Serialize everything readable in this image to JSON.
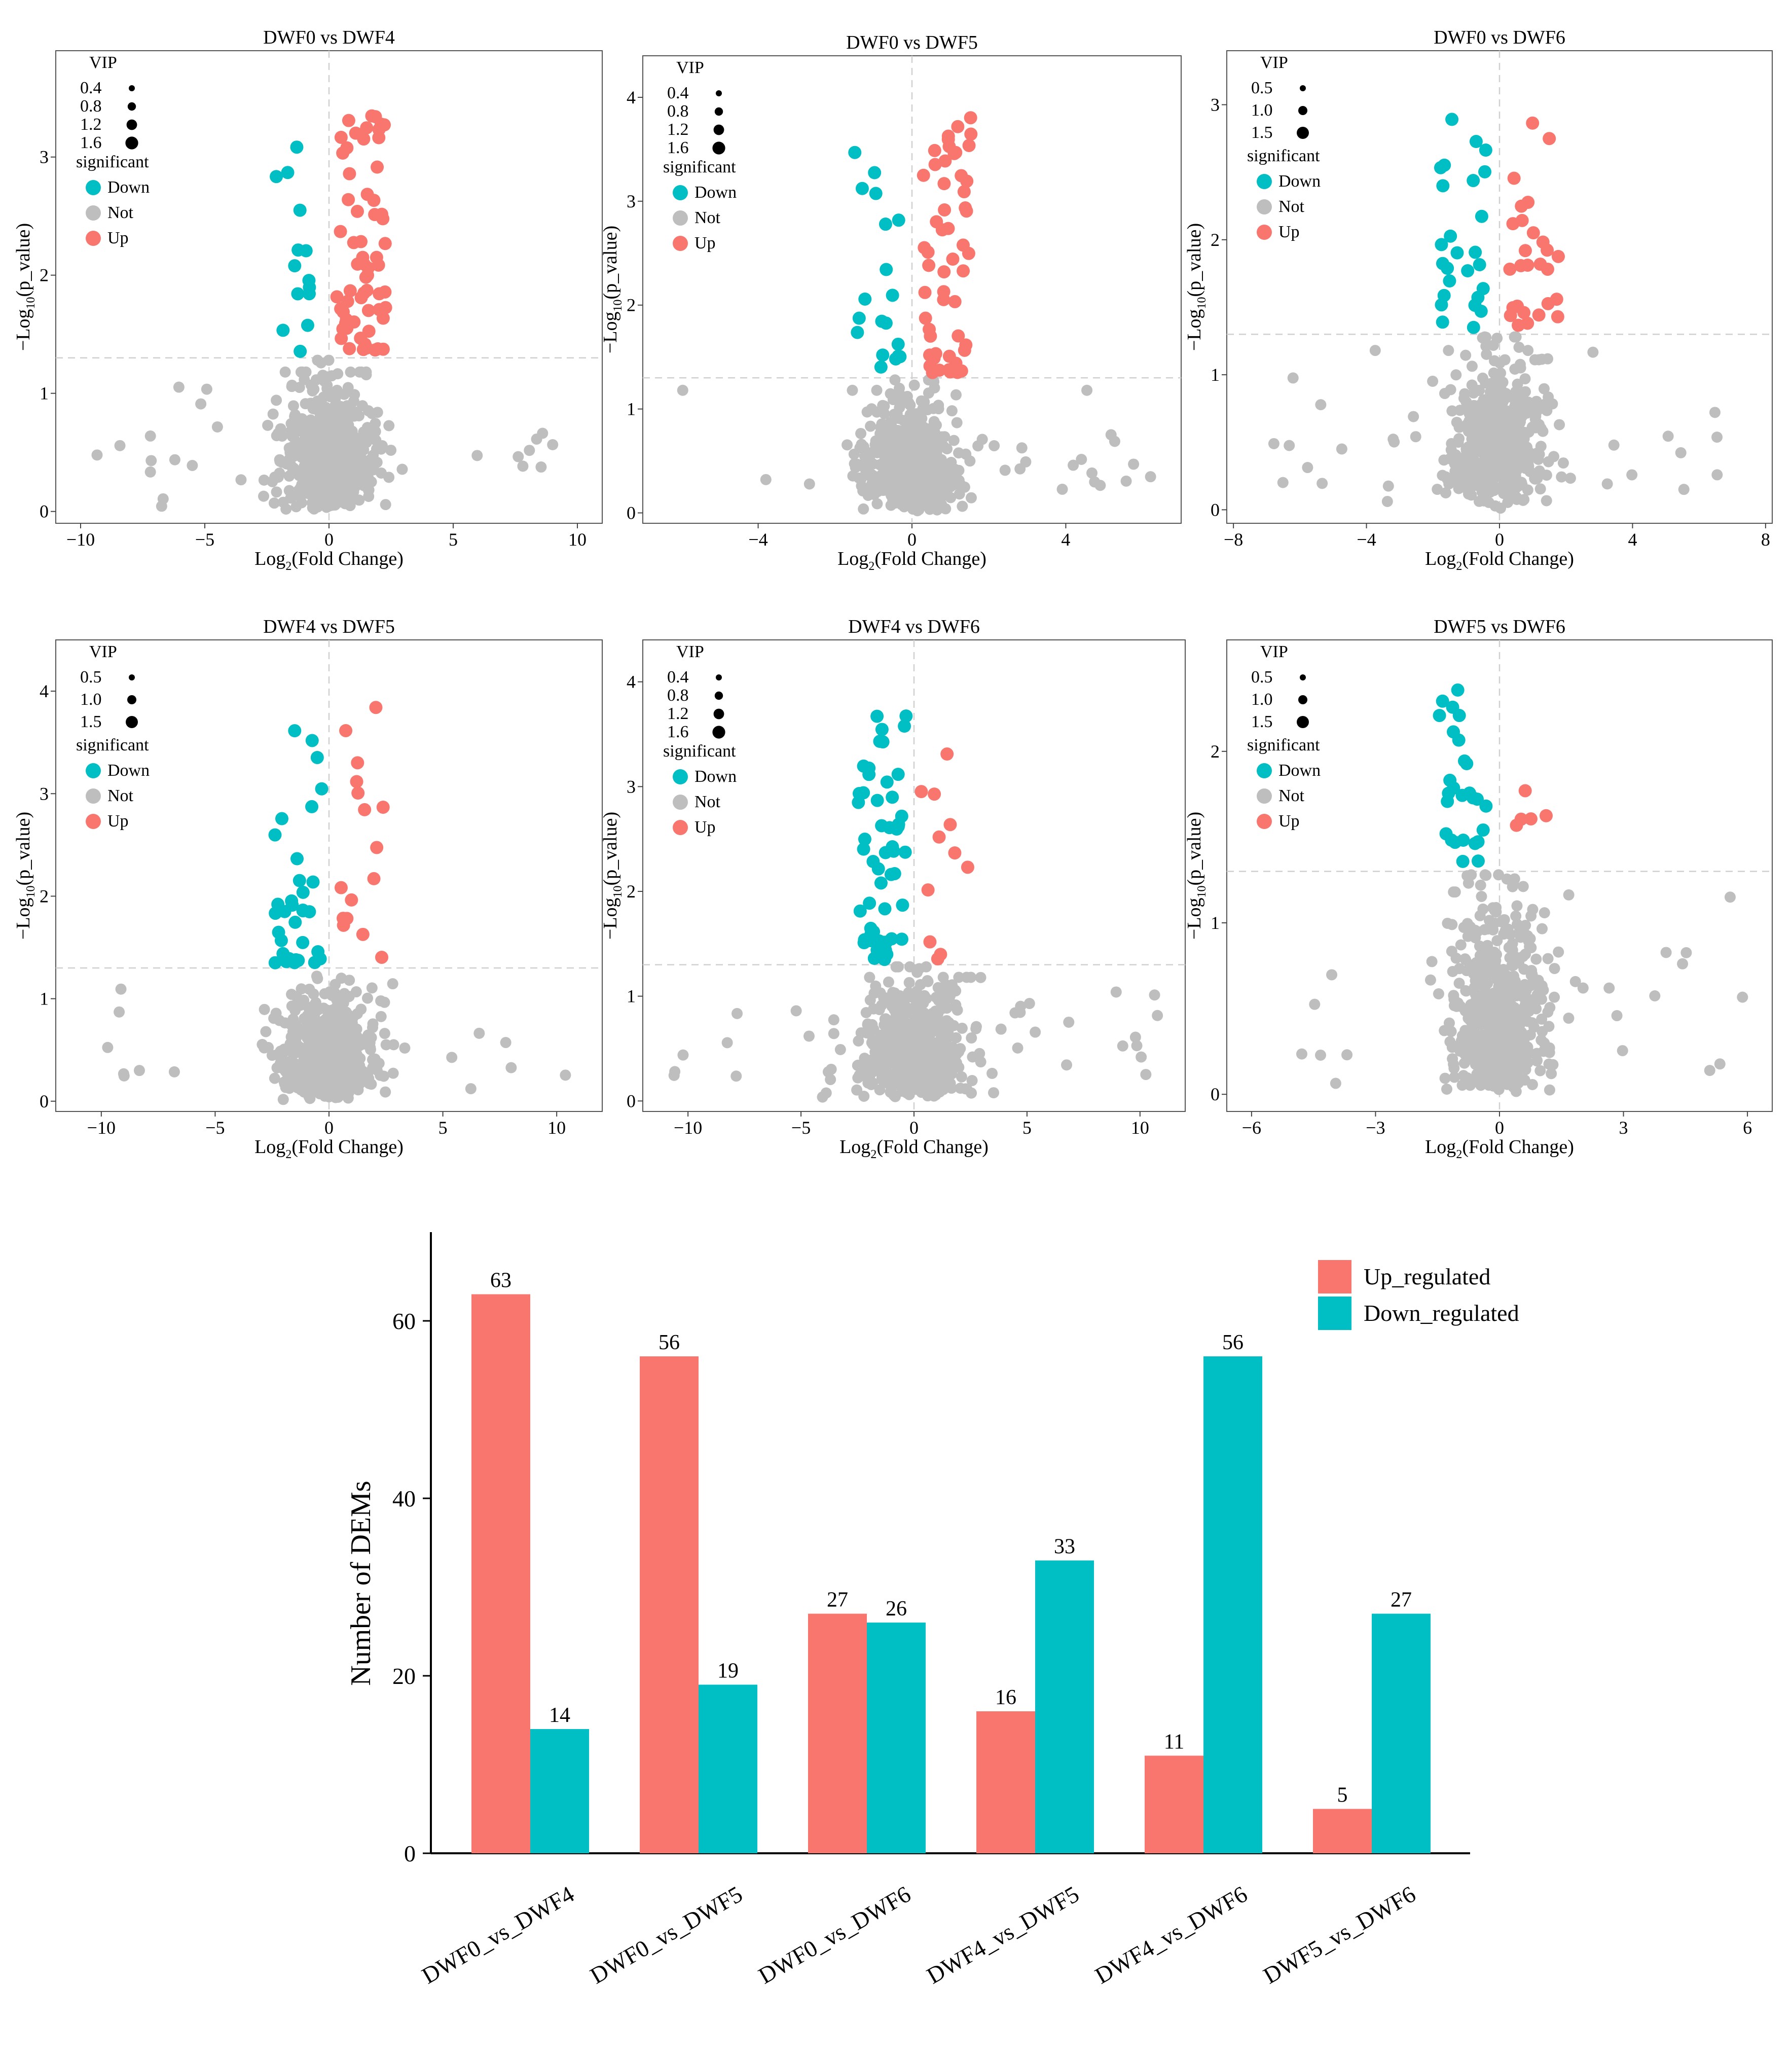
{
  "colors": {
    "down": "#00BFC4",
    "not": "#BEBEBE",
    "up": "#F8766D",
    "threshold": "#d0d0d0"
  },
  "volcano": {
    "legend": {
      "vip_title": "VIP",
      "sig_title": "significant",
      "down": "Down",
      "not": "Not",
      "up": "Up"
    },
    "threshold_y": 1.3
  },
  "chart_data": [
    {
      "type": "scatter",
      "title": "DWF0 vs DWF4",
      "xlabel": "Log2(Fold Change)",
      "ylabel": "-Log10(p_value)",
      "xlim": [
        -11,
        11
      ],
      "ylim": [
        -0.1,
        3.9
      ],
      "xticks": [
        -10,
        -5,
        0,
        5,
        10
      ],
      "yticks": [
        0,
        1,
        2,
        3
      ],
      "vip_sizes": [
        "0.4",
        "0.8",
        "1.2",
        "1.6"
      ],
      "n_up": 63,
      "n_down": 14
    },
    {
      "type": "scatter",
      "title": "DWF0 vs DWF5",
      "xlabel": "Log2(Fold Change)",
      "ylabel": "-Log10(p_value)",
      "xlim": [
        -7,
        7
      ],
      "ylim": [
        -0.1,
        4.4
      ],
      "xticks": [
        -4,
        0,
        4
      ],
      "yticks": [
        0,
        1,
        2,
        3,
        4
      ],
      "vip_sizes": [
        "0.4",
        "0.8",
        "1.2",
        "1.6"
      ],
      "n_up": 56,
      "n_down": 19
    },
    {
      "type": "scatter",
      "title": "DWF0 vs DWF6",
      "xlabel": "Log2(Fold Change)",
      "ylabel": "-Log10(p_value)",
      "xlim": [
        -8.2,
        8.2
      ],
      "ylim": [
        -0.1,
        3.4
      ],
      "xticks": [
        -8,
        -4,
        0,
        4,
        8
      ],
      "yticks": [
        0,
        1,
        2,
        3
      ],
      "vip_sizes": [
        "0.5",
        "1.0",
        "1.5"
      ],
      "n_up": 27,
      "n_down": 26
    },
    {
      "type": "scatter",
      "title": "DWF4 vs DWF5",
      "xlabel": "Log2(Fold Change)",
      "ylabel": "-Log10(p_value)",
      "xlim": [
        -12,
        12
      ],
      "ylim": [
        -0.1,
        4.5
      ],
      "xticks": [
        -10,
        -5,
        0,
        5,
        10
      ],
      "yticks": [
        0,
        1,
        2,
        3,
        4
      ],
      "vip_sizes": [
        "0.5",
        "1.0",
        "1.5"
      ],
      "n_up": 16,
      "n_down": 33
    },
    {
      "type": "scatter",
      "title": "DWF4 vs DWF6",
      "xlabel": "Log2(Fold Change)",
      "ylabel": "-Log10(p_value)",
      "xlim": [
        -12,
        12
      ],
      "ylim": [
        -0.1,
        4.4
      ],
      "xticks": [
        -10,
        -5,
        0,
        5,
        10
      ],
      "yticks": [
        0,
        1,
        2,
        3,
        4
      ],
      "vip_sizes": [
        "0.4",
        "0.8",
        "1.2",
        "1.6"
      ],
      "n_up": 11,
      "n_down": 56
    },
    {
      "type": "scatter",
      "title": "DWF5 vs DWF6",
      "xlabel": "Log2(Fold Change)",
      "ylabel": "-Log10(p_value)",
      "xlim": [
        -6.6,
        6.6
      ],
      "ylim": [
        -0.1,
        2.65
      ],
      "xticks": [
        -6,
        -3,
        0,
        3,
        6
      ],
      "yticks": [
        0,
        1,
        2
      ],
      "vip_sizes": [
        "0.5",
        "1.0",
        "1.5"
      ],
      "n_up": 5,
      "n_down": 27
    },
    {
      "type": "bar",
      "title": "",
      "xlabel": "",
      "ylabel": "Number of DEMs",
      "categories": [
        "DWF0_vs_DWF4",
        "DWF0_vs_DWF5",
        "DWF0_vs_DWF6",
        "DWF4_vs_DWF5",
        "DWF4_vs_DWF6",
        "DWF5_vs_DWF6"
      ],
      "series": [
        {
          "name": "Up_regulated",
          "values": [
            63,
            56,
            27,
            16,
            11,
            5
          ]
        },
        {
          "name": "Down_regulated",
          "values": [
            14,
            19,
            26,
            33,
            56,
            27
          ]
        }
      ],
      "ylim": [
        0,
        70
      ],
      "yticks": [
        0,
        20,
        40,
        60
      ],
      "legend": "top-right"
    }
  ]
}
